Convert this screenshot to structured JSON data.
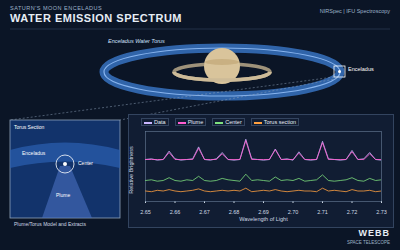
{
  "header": {
    "subtitle": "SATURN'S MOON ENCELADUS",
    "title": "WATER EMISSION SPECTRUM",
    "instrument": "NIRSpec | IFU Spectroscopy"
  },
  "diagram": {
    "torus_label": "Enceladus Water Torus",
    "moon_label": "Enceladus",
    "inset": {
      "labels": [
        "Torus Section",
        "Enceladus",
        "Center",
        "Plume"
      ],
      "caption": "Plume/Torus Model and Extracts"
    }
  },
  "footer": {
    "logo": "WEBB",
    "logo_sub": "SPACE TELESCOPE"
  },
  "chart_data": {
    "type": "line",
    "x_label": "Wavelength of Light",
    "y_label": "Relative Brightness",
    "xlim": [
      2.65,
      2.73
    ],
    "xticks": [
      2.65,
      2.66,
      2.67,
      2.68,
      2.69,
      {
        "value": 2.7,
        "label": "2.70"
      },
      2.71,
      2.72,
      2.73
    ],
    "ylim": [
      0,
      10
    ],
    "tick_labels": "x",
    "legend": "top-left",
    "x": [
      2.65,
      2.652,
      2.654,
      2.656,
      2.658,
      2.66,
      2.662,
      2.664,
      2.666,
      2.668,
      2.67,
      2.672,
      2.674,
      2.676,
      2.678,
      2.68,
      2.682,
      2.684,
      2.686,
      2.688,
      2.69,
      2.692,
      2.694,
      2.696,
      2.698,
      2.7,
      2.702,
      2.704,
      2.706,
      2.708,
      2.71,
      2.712,
      2.714,
      2.716,
      2.718,
      2.72,
      2.722,
      2.724,
      2.726,
      2.728,
      2.73
    ],
    "series": [
      {
        "name": "Data",
        "color": "#c9b6ff",
        "values": [
          6.0,
          6.1,
          5.9,
          6.0,
          7.2,
          6.1,
          5.9,
          6.0,
          6.1,
          7.8,
          6.0,
          5.9,
          6.1,
          7.0,
          6.0,
          5.9,
          6.0,
          8.9,
          6.1,
          6.0,
          5.9,
          6.0,
          7.5,
          6.0,
          6.1,
          5.9,
          7.1,
          6.0,
          5.9,
          6.0,
          8.6,
          6.1,
          6.0,
          5.9,
          6.0,
          7.3,
          6.0,
          6.1,
          7.0,
          6.0,
          5.9
        ]
      },
      {
        "name": "Plume",
        "color": "#ff5fd2",
        "values": [
          6.0,
          6.0,
          6.0,
          6.0,
          7.0,
          6.0,
          6.0,
          6.0,
          6.0,
          7.6,
          6.0,
          6.0,
          6.0,
          6.8,
          6.0,
          6.0,
          6.0,
          8.7,
          6.0,
          6.0,
          6.0,
          6.0,
          7.4,
          6.0,
          6.0,
          6.0,
          6.9,
          6.0,
          6.0,
          6.0,
          8.4,
          6.0,
          6.0,
          6.0,
          6.0,
          7.1,
          6.0,
          6.0,
          6.8,
          6.0,
          6.0
        ]
      },
      {
        "name": "Center",
        "color": "#7ee07e",
        "values": [
          3.0,
          3.1,
          2.9,
          3.0,
          3.4,
          3.0,
          2.9,
          3.1,
          3.0,
          3.6,
          3.0,
          2.9,
          3.0,
          3.3,
          3.1,
          3.0,
          2.9,
          3.9,
          3.0,
          3.1,
          3.0,
          2.9,
          3.5,
          3.0,
          3.1,
          3.0,
          3.3,
          2.9,
          3.0,
          3.1,
          3.8,
          3.0,
          2.9,
          3.0,
          3.1,
          3.4,
          3.0,
          2.9,
          3.3,
          3.0,
          3.1
        ]
      },
      {
        "name": "Torus section",
        "color": "#ffa040",
        "values": [
          1.5,
          1.4,
          1.6,
          1.5,
          1.7,
          1.5,
          1.4,
          1.5,
          1.6,
          1.8,
          1.5,
          1.4,
          1.5,
          1.6,
          1.5,
          1.6,
          1.5,
          1.9,
          1.4,
          1.5,
          1.6,
          1.5,
          1.7,
          1.5,
          1.4,
          1.5,
          1.6,
          1.5,
          1.5,
          1.4,
          1.9,
          1.5,
          1.6,
          1.5,
          1.4,
          1.7,
          1.5,
          1.5,
          1.6,
          1.4,
          1.5
        ]
      }
    ]
  }
}
